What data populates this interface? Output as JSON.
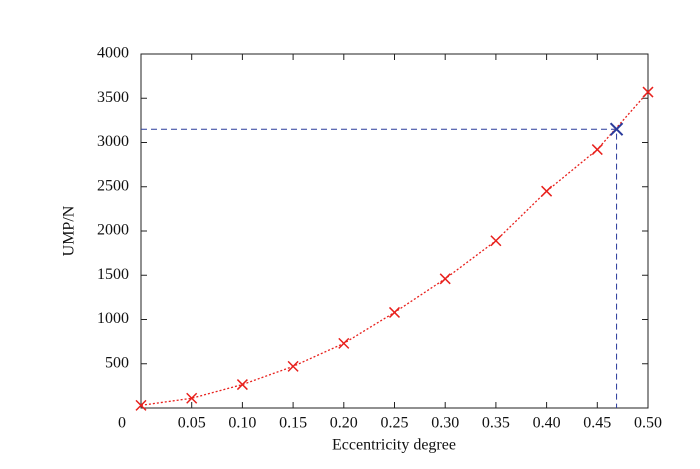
{
  "chart_data": {
    "type": "line",
    "x_label": "Eccentricity degree",
    "y_label": "UMP/N",
    "series": [
      {
        "name": "UMP",
        "color": "#e8201c",
        "x": [
          0,
          0.05,
          0.1,
          0.15,
          0.2,
          0.25,
          0.3,
          0.35,
          0.4,
          0.45,
          0.5
        ],
        "values": [
          30,
          110,
          265,
          470,
          730,
          1080,
          1460,
          1890,
          2450,
          2920,
          3570
        ]
      }
    ],
    "highlight": {
      "color": "#2a3b9c",
      "x": 0.469,
      "value": 3150
    },
    "xlim": [
      0,
      0.5
    ],
    "ylim": [
      0,
      4000
    ],
    "xticks": [
      {
        "value": 0,
        "label": "0"
      },
      {
        "value": 0.05,
        "label": "0.05"
      },
      {
        "value": 0.1,
        "label": "0.10"
      },
      {
        "value": 0.15,
        "label": "0.15"
      },
      {
        "value": 0.2,
        "label": "0.20"
      },
      {
        "value": 0.25,
        "label": "0.25"
      },
      {
        "value": 0.3,
        "label": "0.30"
      },
      {
        "value": 0.35,
        "label": "0.35"
      },
      {
        "value": 0.4,
        "label": "0.40"
      },
      {
        "value": 0.45,
        "label": "0.45"
      },
      {
        "value": 0.5,
        "label": "0.50"
      }
    ],
    "yticks": [
      500,
      1000,
      1500,
      2000,
      2500,
      3000,
      3500,
      4000
    ]
  }
}
